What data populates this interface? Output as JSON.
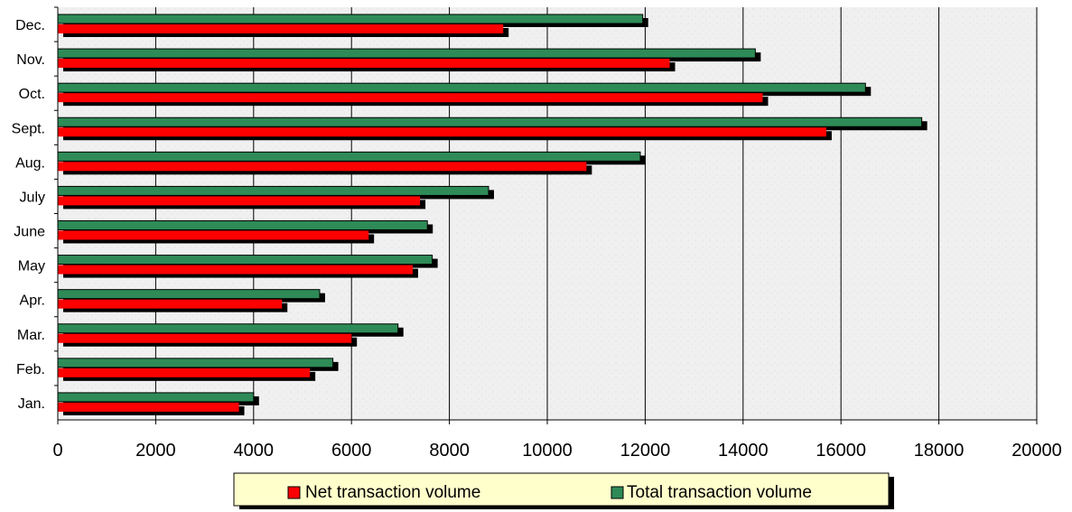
{
  "chart_data": {
    "type": "bar",
    "orientation": "horizontal",
    "categories": [
      "Dec.",
      "Nov.",
      "Oct.",
      "Sept.",
      "Aug.",
      "July",
      "June",
      "May",
      "Apr.",
      "Mar.",
      "Feb.",
      "Jan."
    ],
    "series": [
      {
        "name": "Net transaction volume",
        "color": "#ff0000",
        "values": [
          9100,
          12500,
          14400,
          15700,
          10800,
          7400,
          6350,
          7250,
          4580,
          6000,
          5150,
          3700
        ]
      },
      {
        "name": "Total transaction volume",
        "color": "#2e8b57",
        "values": [
          11950,
          14250,
          16500,
          17650,
          11900,
          8800,
          7550,
          7650,
          5350,
          6950,
          5620,
          4000
        ]
      }
    ],
    "xlim": [
      0,
      20000
    ],
    "xticks": [
      "0",
      "2000",
      "4000",
      "6000",
      "8000",
      "10000",
      "12000",
      "14000",
      "16000",
      "18000",
      "20000"
    ],
    "grid": "vertical",
    "legend_position": "bottom"
  }
}
